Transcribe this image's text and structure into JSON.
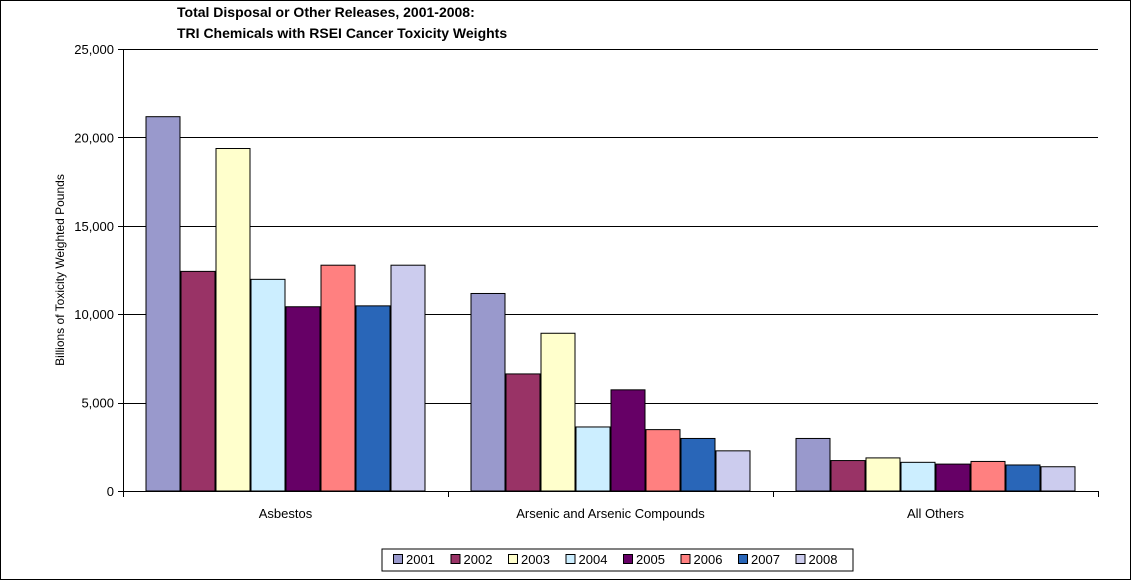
{
  "chart_data": {
    "type": "bar",
    "title": [
      "Total Disposal or Other Releases, 2001-2008:",
      "TRI Chemicals with RSEI Cancer Toxicity Weights"
    ],
    "xlabel": "",
    "ylabel": "Billions of Toxicity Weighted Pounds",
    "ylim": [
      0,
      25000
    ],
    "yticks": [
      0,
      5000,
      10000,
      15000,
      20000,
      25000
    ],
    "ytick_labels": [
      "0",
      "5,000",
      "10,000",
      "15,000",
      "20,000",
      "25,000"
    ],
    "categories": [
      "Asbestos",
      "Arsenic and Arsenic Compounds",
      "All Others"
    ],
    "series": [
      {
        "name": "2001",
        "color": "#9999cc",
        "values": [
          21200,
          11200,
          3000
        ]
      },
      {
        "name": "2002",
        "color": "#993366",
        "values": [
          12450,
          6650,
          1750
        ]
      },
      {
        "name": "2003",
        "color": "#ffffcc",
        "values": [
          19400,
          8950,
          1900
        ]
      },
      {
        "name": "2004",
        "color": "#cceeff",
        "values": [
          12000,
          3650,
          1650
        ]
      },
      {
        "name": "2005",
        "color": "#660066",
        "values": [
          10450,
          5750,
          1550
        ]
      },
      {
        "name": "2006",
        "color": "#ff8080",
        "values": [
          12800,
          3500,
          1700
        ]
      },
      {
        "name": "2007",
        "color": "#2966b8",
        "values": [
          10500,
          3000,
          1500
        ]
      },
      {
        "name": "2008",
        "color": "#ccccee",
        "values": [
          12800,
          2300,
          1400
        ]
      }
    ],
    "grid": true,
    "legend_position": "bottom"
  }
}
